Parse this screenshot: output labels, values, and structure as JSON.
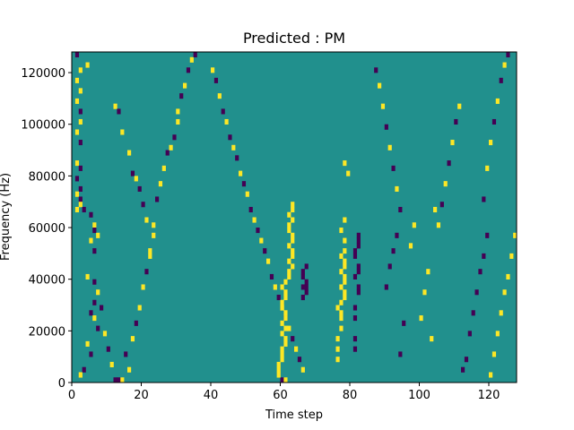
{
  "chart_data": {
    "type": "heatmap",
    "title": "Predicted : PM",
    "xlabel": "Time step",
    "ylabel": "Frequency (Hz)",
    "xlim": [
      0,
      128
    ],
    "ylim": [
      0,
      128000
    ],
    "xticks": [
      0,
      20,
      40,
      60,
      80,
      100,
      120
    ],
    "yticks": [
      0,
      20000,
      40000,
      60000,
      80000,
      100000,
      120000
    ],
    "grid": false,
    "legend": "none",
    "colormap": "viridis",
    "levels": [
      {
        "value": -1,
        "color": "#440154"
      },
      {
        "value": 0,
        "color": "#21908d"
      },
      {
        "value": 1,
        "color": "#fde725"
      }
    ],
    "background_value": 0,
    "grid_size": {
      "columns": 128,
      "rows": 64
    },
    "cells": [
      [
        1,
        63,
        -1
      ],
      [
        4,
        61,
        1
      ],
      [
        2,
        60,
        1
      ],
      [
        1,
        58,
        1
      ],
      [
        2,
        56,
        1
      ],
      [
        1,
        54,
        1
      ],
      [
        2,
        52,
        -1
      ],
      [
        2,
        50,
        1
      ],
      [
        1,
        48,
        1
      ],
      [
        2,
        46,
        -1
      ],
      [
        1,
        42,
        1
      ],
      [
        2,
        41,
        -1
      ],
      [
        1,
        39,
        -1
      ],
      [
        2,
        37,
        -1
      ],
      [
        1,
        36,
        1
      ],
      [
        2,
        35,
        -1
      ],
      [
        2,
        34,
        1
      ],
      [
        1,
        33,
        1
      ],
      [
        3,
        33,
        -1
      ],
      [
        5,
        32,
        -1
      ],
      [
        6,
        30,
        1
      ],
      [
        6,
        29,
        -1
      ],
      [
        7,
        28,
        1
      ],
      [
        5,
        27,
        1
      ],
      [
        6,
        25,
        -1
      ],
      [
        4,
        20,
        1
      ],
      [
        6,
        19,
        -1
      ],
      [
        7,
        17,
        1
      ],
      [
        6,
        15,
        -1
      ],
      [
        5,
        13,
        -1
      ],
      [
        6,
        12,
        1
      ],
      [
        7,
        10,
        -1
      ],
      [
        4,
        7,
        1
      ],
      [
        5,
        5,
        -1
      ],
      [
        3,
        2,
        -1
      ],
      [
        2,
        1,
        1
      ],
      [
        8,
        14,
        -1
      ],
      [
        9,
        9,
        1
      ],
      [
        10,
        6,
        -1
      ],
      [
        11,
        3,
        1
      ],
      [
        12,
        0,
        -1
      ],
      [
        13,
        0,
        -1
      ],
      [
        14,
        0,
        1
      ],
      [
        16,
        2,
        1
      ],
      [
        15,
        5,
        -1
      ],
      [
        17,
        8,
        1
      ],
      [
        18,
        11,
        -1
      ],
      [
        19,
        14,
        1
      ],
      [
        20,
        18,
        1
      ],
      [
        21,
        21,
        -1
      ],
      [
        22,
        24,
        1
      ],
      [
        22,
        25,
        1
      ],
      [
        23,
        28,
        1
      ],
      [
        23,
        30,
        1
      ],
      [
        24,
        35,
        -1
      ],
      [
        25,
        38,
        1
      ],
      [
        26,
        41,
        1
      ],
      [
        27,
        44,
        -1
      ],
      [
        28,
        45,
        1
      ],
      [
        29,
        47,
        -1
      ],
      [
        30,
        50,
        1
      ],
      [
        30,
        52,
        1
      ],
      [
        31,
        55,
        -1
      ],
      [
        32,
        57,
        1
      ],
      [
        33,
        60,
        -1
      ],
      [
        34,
        62,
        1
      ],
      [
        35,
        63,
        -1
      ],
      [
        12,
        53,
        1
      ],
      [
        13,
        52,
        -1
      ],
      [
        14,
        48,
        1
      ],
      [
        16,
        44,
        1
      ],
      [
        17,
        40,
        -1
      ],
      [
        18,
        39,
        1
      ],
      [
        19,
        37,
        -1
      ],
      [
        20,
        34,
        -1
      ],
      [
        21,
        31,
        1
      ],
      [
        40,
        60,
        1
      ],
      [
        41,
        58,
        -1
      ],
      [
        42,
        55,
        1
      ],
      [
        43,
        52,
        -1
      ],
      [
        44,
        50,
        1
      ],
      [
        45,
        47,
        -1
      ],
      [
        46,
        45,
        1
      ],
      [
        47,
        43,
        -1
      ],
      [
        48,
        40,
        1
      ],
      [
        49,
        38,
        -1
      ],
      [
        50,
        36,
        1
      ],
      [
        51,
        33,
        -1
      ],
      [
        52,
        31,
        1
      ],
      [
        53,
        29,
        -1
      ],
      [
        54,
        27,
        1
      ],
      [
        55,
        25,
        -1
      ],
      [
        56,
        23,
        1
      ],
      [
        57,
        20,
        -1
      ],
      [
        58,
        18,
        1
      ],
      [
        59,
        16,
        -1
      ],
      [
        60,
        14,
        1
      ],
      [
        61,
        12,
        -1
      ],
      [
        62,
        10,
        1
      ],
      [
        63,
        8,
        -1
      ],
      [
        64,
        6,
        1
      ],
      [
        65,
        4,
        -1
      ],
      [
        66,
        2,
        1
      ],
      [
        60,
        0,
        -1
      ],
      [
        61,
        0,
        1
      ],
      [
        59,
        1,
        1
      ],
      [
        59,
        2,
        1
      ],
      [
        59,
        3,
        1
      ],
      [
        60,
        4,
        1
      ],
      [
        60,
        5,
        1
      ],
      [
        60,
        6,
        1
      ],
      [
        61,
        7,
        1
      ],
      [
        61,
        8,
        1
      ],
      [
        60,
        9,
        1
      ],
      [
        61,
        10,
        1
      ],
      [
        60,
        11,
        1
      ],
      [
        61,
        12,
        1
      ],
      [
        61,
        13,
        1
      ],
      [
        60,
        14,
        1
      ],
      [
        60,
        15,
        1
      ],
      [
        61,
        16,
        1
      ],
      [
        61,
        17,
        1
      ],
      [
        60,
        18,
        1
      ],
      [
        61,
        19,
        1
      ],
      [
        62,
        20,
        1
      ],
      [
        62,
        21,
        1
      ],
      [
        63,
        22,
        1
      ],
      [
        62,
        23,
        1
      ],
      [
        63,
        24,
        1
      ],
      [
        63,
        25,
        1
      ],
      [
        62,
        26,
        1
      ],
      [
        63,
        27,
        1
      ],
      [
        63,
        28,
        1
      ],
      [
        62,
        29,
        1
      ],
      [
        62,
        30,
        1
      ],
      [
        63,
        31,
        1
      ],
      [
        62,
        32,
        1
      ],
      [
        63,
        33,
        1
      ],
      [
        63,
        34,
        1
      ],
      [
        76,
        4,
        1
      ],
      [
        76,
        6,
        1
      ],
      [
        76,
        8,
        1
      ],
      [
        77,
        10,
        1
      ],
      [
        77,
        12,
        1
      ],
      [
        77,
        13,
        1
      ],
      [
        76,
        14,
        1
      ],
      [
        77,
        15,
        1
      ],
      [
        78,
        16,
        1
      ],
      [
        78,
        17,
        1
      ],
      [
        77,
        18,
        1
      ],
      [
        78,
        19,
        1
      ],
      [
        78,
        20,
        1
      ],
      [
        77,
        21,
        1
      ],
      [
        78,
        22,
        1
      ],
      [
        78,
        23,
        1
      ],
      [
        77,
        24,
        1
      ],
      [
        78,
        25,
        1
      ],
      [
        78,
        27,
        1
      ],
      [
        77,
        29,
        1
      ],
      [
        78,
        31,
        1
      ],
      [
        79,
        40,
        1
      ],
      [
        78,
        42,
        1
      ],
      [
        81,
        6,
        -1
      ],
      [
        81,
        8,
        -1
      ],
      [
        81,
        12,
        -1
      ],
      [
        81,
        14,
        -1
      ],
      [
        82,
        17,
        -1
      ],
      [
        82,
        18,
        -1
      ],
      [
        81,
        20,
        -1
      ],
      [
        82,
        21,
        -1
      ],
      [
        82,
        22,
        -1
      ],
      [
        81,
        24,
        -1
      ],
      [
        81,
        25,
        -1
      ],
      [
        82,
        26,
        -1
      ],
      [
        82,
        27,
        -1
      ],
      [
        82,
        28,
        -1
      ],
      [
        66,
        16,
        -1
      ],
      [
        67,
        17,
        -1
      ],
      [
        66,
        18,
        -1
      ],
      [
        67,
        18,
        -1
      ],
      [
        67,
        19,
        -1
      ],
      [
        66,
        20,
        -1
      ],
      [
        66,
        21,
        -1
      ],
      [
        67,
        22,
        -1
      ],
      [
        97,
        26,
        1
      ],
      [
        98,
        30,
        1
      ],
      [
        100,
        12,
        1
      ],
      [
        101,
        17,
        1
      ],
      [
        102,
        21,
        1
      ],
      [
        103,
        8,
        1
      ],
      [
        104,
        33,
        1
      ],
      [
        90,
        18,
        -1
      ],
      [
        91,
        22,
        -1
      ],
      [
        92,
        25,
        -1
      ],
      [
        93,
        28,
        -1
      ],
      [
        94,
        5,
        -1
      ],
      [
        95,
        11,
        -1
      ],
      [
        112,
        2,
        -1
      ],
      [
        113,
        4,
        -1
      ],
      [
        114,
        9,
        -1
      ],
      [
        115,
        13,
        -1
      ],
      [
        116,
        17,
        -1
      ],
      [
        117,
        21,
        -1
      ],
      [
        118,
        24,
        -1
      ],
      [
        119,
        28,
        -1
      ],
      [
        120,
        1,
        1
      ],
      [
        121,
        5,
        1
      ],
      [
        122,
        9,
        1
      ],
      [
        123,
        13,
        1
      ],
      [
        124,
        17,
        1
      ],
      [
        125,
        20,
        1
      ],
      [
        126,
        24,
        1
      ],
      [
        127,
        28,
        1
      ],
      [
        118,
        35,
        -1
      ],
      [
        119,
        41,
        1
      ],
      [
        120,
        46,
        1
      ],
      [
        121,
        50,
        -1
      ],
      [
        122,
        54,
        1
      ],
      [
        123,
        58,
        -1
      ],
      [
        124,
        61,
        1
      ],
      [
        125,
        63,
        -1
      ],
      [
        105,
        30,
        1
      ],
      [
        106,
        34,
        -1
      ],
      [
        107,
        38,
        1
      ],
      [
        108,
        42,
        -1
      ],
      [
        109,
        46,
        1
      ],
      [
        110,
        50,
        -1
      ],
      [
        111,
        53,
        1
      ],
      [
        87,
        60,
        -1
      ],
      [
        88,
        57,
        1
      ],
      [
        89,
        53,
        1
      ],
      [
        90,
        49,
        -1
      ],
      [
        91,
        45,
        1
      ],
      [
        92,
        41,
        -1
      ],
      [
        93,
        37,
        1
      ],
      [
        94,
        33,
        -1
      ]
    ]
  }
}
